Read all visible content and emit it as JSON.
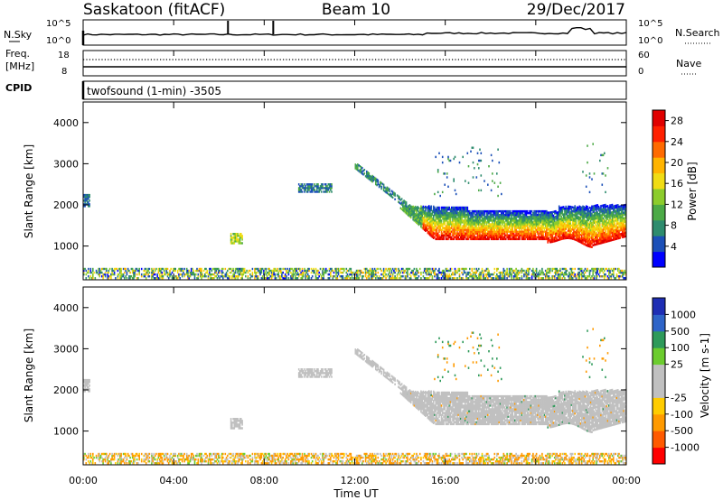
{
  "header": {
    "station": "Saskatoon (fitACF)",
    "beam": "Beam 10",
    "date": "29/Dec/2017"
  },
  "noise_panel": {
    "left_label": "N.Sky",
    "right_label": "N.Search",
    "left_ticks": [
      "10^5",
      "10^0"
    ],
    "right_ticks": [
      "10^5",
      "10^0"
    ]
  },
  "freq_panel": {
    "left_label_top": "Freq.",
    "left_label_bottom": "[MHz]",
    "right_label": "Nave",
    "left_ticks": [
      "18",
      "8"
    ],
    "right_ticks": [
      "60",
      "0"
    ]
  },
  "cpid": {
    "label": "CPID",
    "text": "twofsound (1-min) -3505"
  },
  "power_panel": {
    "ylabel": "Slant Range [km]",
    "yticks": [
      "1000",
      "2000",
      "3000",
      "4000"
    ],
    "colorbar_label": "Power [dB]",
    "colorbar_ticks": [
      "4",
      "8",
      "12",
      "16",
      "20",
      "24",
      "28"
    ],
    "colorbar_colors": [
      "#0000ff",
      "#1c50b8",
      "#2e8c6e",
      "#4caa46",
      "#8ccc2c",
      "#f0dc14",
      "#ffb400",
      "#ff6a00",
      "#ff2000",
      "#e00000"
    ]
  },
  "velocity_panel": {
    "ylabel": "Slant Range [km]",
    "yticks": [
      "1000",
      "2000",
      "3000",
      "4000"
    ],
    "colorbar_label": "Velocity [m s-1]",
    "colorbar_ticks": [
      "1000",
      "500",
      "100",
      "25",
      "-25",
      "-100",
      "-500",
      "-1000"
    ],
    "colorbar_colors": [
      "#1e2eb4",
      "#2e64c8",
      "#2e9a5a",
      "#6ccc2e",
      "#c0c0c0",
      "#c0c0c0",
      "#ffcc00",
      "#ff9a00",
      "#ff5a00",
      "#ff0000"
    ]
  },
  "xaxis": {
    "label": "Time UT",
    "ticks": [
      "00:00",
      "04:00",
      "08:00",
      "12:00",
      "16:00",
      "20:00",
      "00:00"
    ]
  },
  "chart_data": {
    "type": "heatmap",
    "title": "Saskatoon (fitACF) Beam 10 29/Dec/2017",
    "xlabel": "Time UT",
    "ylabel": "Slant Range [km]",
    "xlim_hours": [
      0,
      24
    ],
    "ylim_km": [
      180,
      4500
    ],
    "power_scale_db": [
      0,
      30
    ],
    "velocity_scale_ms": [
      -1000,
      1000
    ],
    "features": [
      {
        "name": "ground scatter band",
        "t_start_h": 14.5,
        "t_end_h": 24,
        "range_low_km": 1050,
        "range_high_km": 1950,
        "power_db": 28,
        "velocity_ms": 0
      },
      {
        "name": "patch",
        "t_start_h": 9.5,
        "t_end_h": 11,
        "range_low_km": 2300,
        "range_high_km": 2500,
        "power_db": 6,
        "velocity_ms": 0
      },
      {
        "name": "patch",
        "t_start_h": 6.5,
        "t_end_h": 7,
        "range_low_km": 1050,
        "range_high_km": 1300,
        "power_db": 14,
        "velocity_ms": 0
      },
      {
        "name": "near-range scatter",
        "t_start_h": 0,
        "t_end_h": 24,
        "range_low_km": 200,
        "range_high_km": 450,
        "power_db": 10,
        "velocity_ms": -150
      }
    ]
  }
}
